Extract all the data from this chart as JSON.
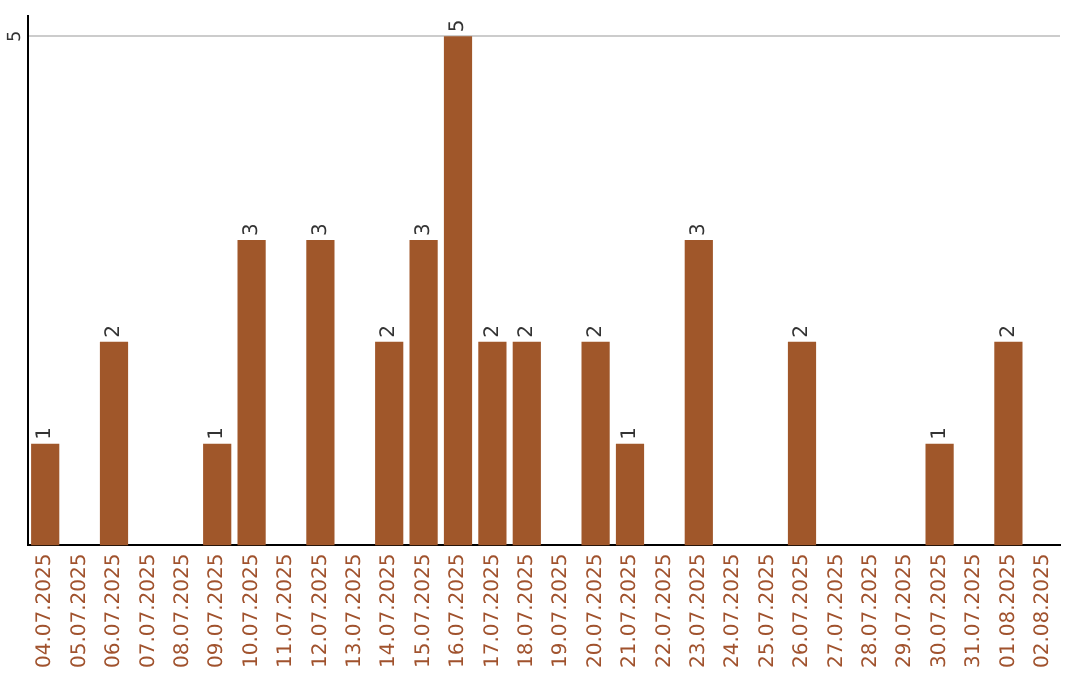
{
  "chart_data": {
    "type": "bar",
    "categories": [
      "04.07.2025",
      "05.07.2025",
      "06.07.2025",
      "07.07.2025",
      "08.07.2025",
      "09.07.2025",
      "10.07.2025",
      "11.07.2025",
      "12.07.2025",
      "13.07.2025",
      "14.07.2025",
      "15.07.2025",
      "16.07.2025",
      "17.07.2025",
      "18.07.2025",
      "19.07.2025",
      "20.07.2025",
      "21.07.2025",
      "22.07.2025",
      "23.07.2025",
      "24.07.2025",
      "25.07.2025",
      "26.07.2025",
      "27.07.2025",
      "28.07.2025",
      "29.07.2025",
      "30.07.2025",
      "31.07.2025",
      "01.08.2025",
      "02.08.2025"
    ],
    "values": [
      1,
      0,
      2,
      0,
      0,
      1,
      3,
      0,
      3,
      0,
      2,
      3,
      5,
      2,
      2,
      0,
      2,
      1,
      0,
      3,
      0,
      0,
      2,
      0,
      0,
      0,
      1,
      0,
      2,
      0
    ],
    "value_labels": [
      "1",
      null,
      "2",
      null,
      null,
      "1",
      "3",
      null,
      "3",
      null,
      "2",
      "3",
      "5",
      "2",
      "2",
      null,
      "2",
      "1",
      null,
      "3",
      null,
      null,
      "2",
      null,
      null,
      null,
      "1",
      null,
      "2",
      null
    ],
    "color": "#a0572a",
    "ylim": [
      0,
      5.2
    ],
    "yticks": [
      5
    ],
    "grid": "y",
    "legend": false
  }
}
